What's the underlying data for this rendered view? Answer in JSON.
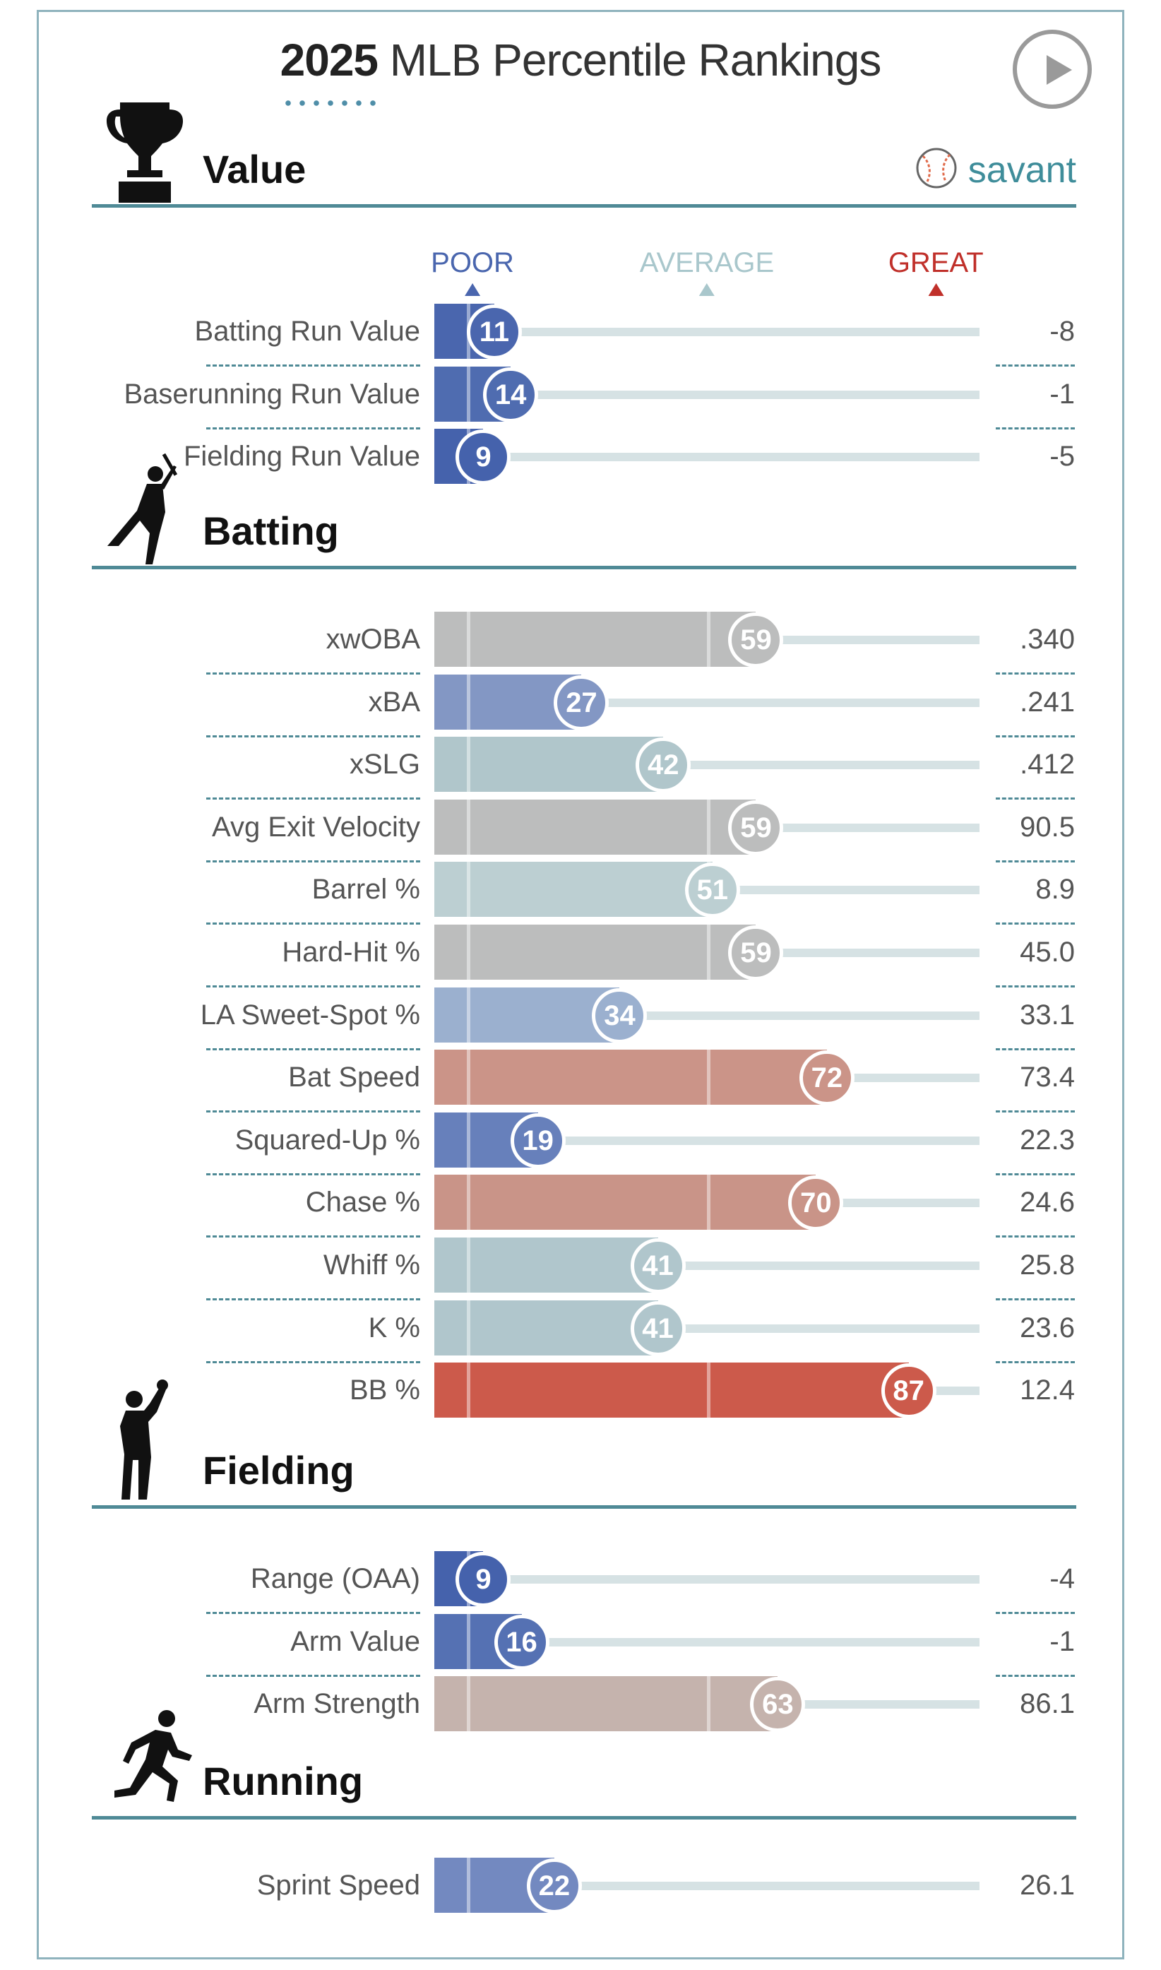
{
  "header": {
    "year": "2025",
    "title_rest": "MLB Percentile Rankings",
    "play_label": "play-icon"
  },
  "brand": {
    "name": "savant",
    "color": "#3f8d9a",
    "icon": "baseball-icon"
  },
  "legend": {
    "poor": "POOR",
    "average": "AVERAGE",
    "great": "GREAT",
    "poor_color": "#4a66ae",
    "average_color": "#a9c7cc",
    "great_color": "#c0302a"
  },
  "colors": {
    "accent": "#4f8a96",
    "track": "#d6e2e4"
  },
  "sections": [
    {
      "label": "Value",
      "icon": "trophy-icon",
      "rows": [
        {
          "metric": "Batting Run Value",
          "percentile": 11,
          "value": "-8",
          "color": "#4a66ae"
        },
        {
          "metric": "Baserunning Run Value",
          "percentile": 14,
          "value": "-1",
          "color": "#4f6cb0"
        },
        {
          "metric": "Fielding Run Value",
          "percentile": 9,
          "value": "-5",
          "color": "#4562ac"
        }
      ]
    },
    {
      "label": "Batting",
      "icon": "batter-icon",
      "rows": [
        {
          "metric": "xwOBA",
          "percentile": 59,
          "value": ".340",
          "color": "#bcbdbd"
        },
        {
          "metric": "xBA",
          "percentile": 27,
          "value": ".241",
          "color": "#8397c4"
        },
        {
          "metric": "xSLG",
          "percentile": 42,
          "value": ".412",
          "color": "#b0c6cb"
        },
        {
          "metric": "Avg Exit Velocity",
          "percentile": 59,
          "value": "90.5",
          "color": "#bcbdbd"
        },
        {
          "metric": "Barrel %",
          "percentile": 51,
          "value": "8.9",
          "color": "#bccfd2"
        },
        {
          "metric": "Hard-Hit %",
          "percentile": 59,
          "value": "45.0",
          "color": "#bcbdbd"
        },
        {
          "metric": "LA Sweet-Spot %",
          "percentile": 34,
          "value": "33.1",
          "color": "#9bb0cf"
        },
        {
          "metric": "Bat Speed",
          "percentile": 72,
          "value": "73.4",
          "color": "#cb9488"
        },
        {
          "metric": "Squared-Up %",
          "percentile": 19,
          "value": "22.3",
          "color": "#6780bb"
        },
        {
          "metric": "Chase %",
          "percentile": 70,
          "value": "24.6",
          "color": "#c99488"
        },
        {
          "metric": "Whiff %",
          "percentile": 41,
          "value": "25.8",
          "color": "#b0c6cc"
        },
        {
          "metric": "K %",
          "percentile": 41,
          "value": "23.6",
          "color": "#b0c6cc"
        },
        {
          "metric": "BB %",
          "percentile": 87,
          "value": "12.4",
          "color": "#cc5a4b"
        }
      ]
    },
    {
      "label": "Fielding",
      "icon": "fielder-icon",
      "rows": [
        {
          "metric": "Range (OAA)",
          "percentile": 9,
          "value": "-4",
          "color": "#4562ac"
        },
        {
          "metric": "Arm Value",
          "percentile": 16,
          "value": "-1",
          "color": "#5571b3"
        },
        {
          "metric": "Arm Strength",
          "percentile": 63,
          "value": "86.1",
          "color": "#c5b3ad"
        }
      ]
    },
    {
      "label": "Running",
      "icon": "runner-icon",
      "rows": [
        {
          "metric": "Sprint Speed",
          "percentile": 22,
          "value": "26.1",
          "color": "#7389c0"
        }
      ]
    }
  ]
}
